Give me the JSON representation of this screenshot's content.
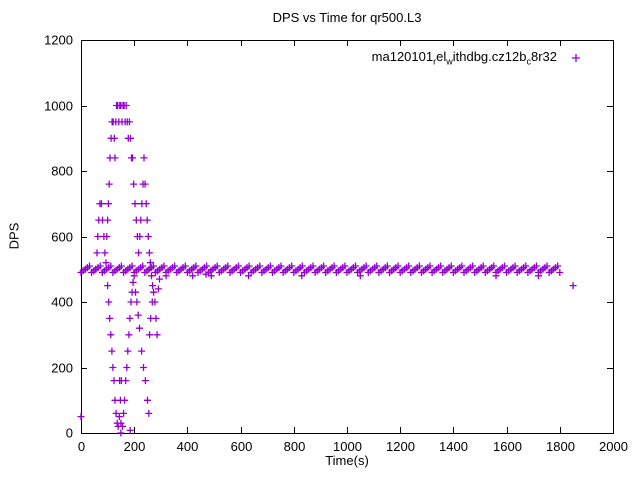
{
  "chart_data": {
    "type": "scatter",
    "title": "DPS vs Time for qr500.L3",
    "xlabel": "Time(s)",
    "ylabel": "DPS",
    "xlim": [
      0,
      2000
    ],
    "ylim": [
      0,
      1200
    ],
    "xticks": [
      0,
      200,
      400,
      600,
      800,
      1000,
      1200,
      1400,
      1600,
      1800,
      2000
    ],
    "yticks": [
      0,
      200,
      400,
      600,
      800,
      1000,
      1200
    ],
    "grid": false,
    "marker": "plus",
    "color": "#9400D3",
    "legend": {
      "position": "top-right-inside",
      "label_plain": "ma120101_rel_withdbg.cz12b_c8r32",
      "segments": [
        {
          "text": "ma120101"
        },
        {
          "text": "r",
          "sub": true
        },
        {
          "text": "el"
        },
        {
          "text": "w",
          "sub": true
        },
        {
          "text": "ithdbg.cz12b"
        },
        {
          "text": "c",
          "sub": true
        },
        {
          "text": "8r32"
        }
      ]
    },
    "series": [
      {
        "name": "ma120101_rel_withdbg.cz12b_c8r32",
        "baseline": {
          "y": 500,
          "x_start": 0,
          "x_end": 1800,
          "step": 8,
          "jitter": [
            -10,
            -5,
            0,
            5,
            10
          ]
        },
        "points": [
          [
            0,
            50
          ],
          [
            55,
            500
          ],
          [
            60,
            550
          ],
          [
            63,
            600
          ],
          [
            67,
            650
          ],
          [
            71,
            700
          ],
          [
            77,
            700
          ],
          [
            81,
            650
          ],
          [
            86,
            600
          ],
          [
            90,
            550
          ],
          [
            94,
            520
          ],
          [
            97,
            600
          ],
          [
            100,
            650
          ],
          [
            103,
            700
          ],
          [
            106,
            760
          ],
          [
            109,
            840
          ],
          [
            113,
            900
          ],
          [
            117,
            950
          ],
          [
            121,
            950
          ],
          [
            125,
            900
          ],
          [
            128,
            840
          ],
          [
            131,
            950
          ],
          [
            134,
            1000
          ],
          [
            138,
            1000
          ],
          [
            142,
            950
          ],
          [
            146,
            1000
          ],
          [
            150,
            1000
          ],
          [
            154,
            950
          ],
          [
            158,
            1000
          ],
          [
            162,
            1000
          ],
          [
            166,
            950
          ],
          [
            170,
            1000
          ],
          [
            174,
            950
          ],
          [
            178,
            900
          ],
          [
            182,
            950
          ],
          [
            186,
            900
          ],
          [
            190,
            840
          ],
          [
            194,
            840
          ],
          [
            198,
            760
          ],
          [
            203,
            700
          ],
          [
            208,
            650
          ],
          [
            212,
            600
          ],
          [
            216,
            550
          ],
          [
            221,
            600
          ],
          [
            225,
            650
          ],
          [
            229,
            700
          ],
          [
            233,
            760
          ],
          [
            237,
            840
          ],
          [
            241,
            760
          ],
          [
            245,
            700
          ],
          [
            249,
            650
          ],
          [
            253,
            600
          ],
          [
            257,
            550
          ],
          [
            261,
            520
          ],
          [
            265,
            480
          ],
          [
            269,
            450
          ],
          [
            273,
            430
          ],
          [
            278,
            400
          ],
          [
            282,
            350
          ],
          [
            286,
            300
          ],
          [
            291,
            440
          ],
          [
            295,
            470
          ],
          [
            100,
            450
          ],
          [
            104,
            400
          ],
          [
            108,
            350
          ],
          [
            112,
            300
          ],
          [
            116,
            250
          ],
          [
            120,
            200
          ],
          [
            124,
            160
          ],
          [
            128,
            100
          ],
          [
            132,
            60
          ],
          [
            136,
            30
          ],
          [
            140,
            20
          ],
          [
            144,
            50
          ],
          [
            148,
            100
          ],
          [
            145,
            160
          ],
          [
            152,
            160
          ],
          [
            150,
            30
          ],
          [
            156,
            20
          ],
          [
            160,
            60
          ],
          [
            164,
            100
          ],
          [
            168,
            160
          ],
          [
            172,
            200
          ],
          [
            176,
            250
          ],
          [
            180,
            300
          ],
          [
            184,
            350
          ],
          [
            188,
            400
          ],
          [
            192,
            430
          ],
          [
            196,
            460
          ],
          [
            200,
            480
          ],
          [
            150,
            0
          ],
          [
            185,
            8
          ],
          [
            205,
            430
          ],
          [
            210,
            400
          ],
          [
            215,
            360
          ],
          [
            220,
            320
          ],
          [
            228,
            250
          ],
          [
            235,
            200
          ],
          [
            242,
            160
          ],
          [
            250,
            100
          ],
          [
            255,
            60
          ],
          [
            258,
            300
          ],
          [
            262,
            350
          ],
          [
            268,
            400
          ],
          [
            320,
            480
          ],
          [
            420,
            480
          ],
          [
            470,
            485
          ],
          [
            490,
            480
          ],
          [
            630,
            480
          ],
          [
            830,
            480
          ],
          [
            1050,
            480
          ],
          [
            1560,
            480
          ],
          [
            1720,
            480
          ],
          [
            1850,
            450
          ]
        ]
      }
    ]
  }
}
